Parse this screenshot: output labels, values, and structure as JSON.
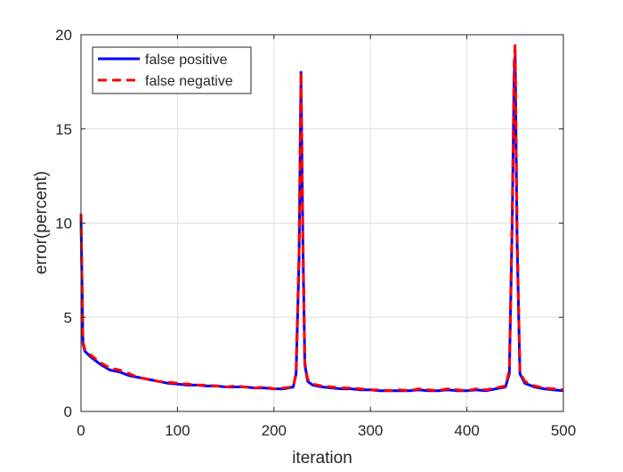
{
  "chart_data": {
    "type": "line",
    "title": "",
    "xlabel": "iteration",
    "ylabel": "error(percent)",
    "xlim": [
      0,
      500
    ],
    "ylim": [
      0,
      20
    ],
    "xticks": [
      0,
      100,
      200,
      300,
      400,
      500
    ],
    "yticks": [
      0,
      5,
      10,
      15,
      20
    ],
    "grid": true,
    "legend_position": "top-left",
    "series": [
      {
        "name": "false positive",
        "color": "#0000ff",
        "style": "solid",
        "x": [
          0,
          2,
          4,
          10,
          20,
          30,
          40,
          50,
          60,
          70,
          80,
          90,
          100,
          110,
          120,
          130,
          140,
          150,
          160,
          170,
          180,
          190,
          200,
          210,
          220,
          223,
          226,
          228,
          230,
          232,
          235,
          240,
          250,
          260,
          270,
          280,
          290,
          300,
          310,
          320,
          330,
          340,
          350,
          360,
          370,
          380,
          390,
          400,
          410,
          420,
          430,
          440,
          444,
          447,
          449,
          450,
          452,
          455,
          460,
          470,
          480,
          490,
          500
        ],
        "y": [
          10.3,
          3.6,
          3.2,
          2.9,
          2.5,
          2.2,
          2.1,
          1.9,
          1.8,
          1.7,
          1.6,
          1.5,
          1.45,
          1.4,
          1.4,
          1.35,
          1.35,
          1.3,
          1.3,
          1.3,
          1.25,
          1.25,
          1.2,
          1.2,
          1.3,
          2.0,
          8.0,
          18.0,
          9.0,
          2.5,
          1.6,
          1.4,
          1.3,
          1.25,
          1.2,
          1.2,
          1.15,
          1.15,
          1.1,
          1.1,
          1.1,
          1.1,
          1.15,
          1.1,
          1.1,
          1.15,
          1.1,
          1.1,
          1.15,
          1.1,
          1.2,
          1.3,
          2.0,
          10.0,
          17.8,
          19.0,
          9.0,
          2.0,
          1.5,
          1.3,
          1.2,
          1.15,
          1.1
        ]
      },
      {
        "name": "false negative",
        "color": "#ff0000",
        "style": "dashed",
        "x": [
          0,
          2,
          4,
          10,
          20,
          30,
          40,
          50,
          60,
          70,
          80,
          90,
          100,
          110,
          120,
          130,
          140,
          150,
          160,
          170,
          180,
          190,
          200,
          210,
          220,
          223,
          226,
          228,
          230,
          232,
          235,
          240,
          250,
          260,
          270,
          280,
          290,
          300,
          310,
          320,
          330,
          340,
          350,
          360,
          370,
          380,
          390,
          400,
          410,
          420,
          430,
          440,
          444,
          447,
          449,
          450,
          452,
          455,
          460,
          470,
          480,
          490,
          500
        ],
        "y": [
          10.5,
          3.7,
          3.3,
          3.0,
          2.6,
          2.3,
          2.2,
          2.0,
          1.8,
          1.7,
          1.6,
          1.55,
          1.5,
          1.45,
          1.4,
          1.4,
          1.35,
          1.3,
          1.35,
          1.3,
          1.25,
          1.3,
          1.2,
          1.25,
          1.3,
          2.1,
          8.5,
          18.0,
          9.5,
          2.6,
          1.7,
          1.45,
          1.35,
          1.3,
          1.25,
          1.25,
          1.2,
          1.15,
          1.15,
          1.1,
          1.15,
          1.1,
          1.2,
          1.15,
          1.1,
          1.2,
          1.15,
          1.1,
          1.2,
          1.15,
          1.25,
          1.35,
          2.2,
          10.5,
          18.5,
          19.5,
          9.5,
          2.1,
          1.6,
          1.35,
          1.25,
          1.2,
          1.15
        ]
      }
    ]
  }
}
